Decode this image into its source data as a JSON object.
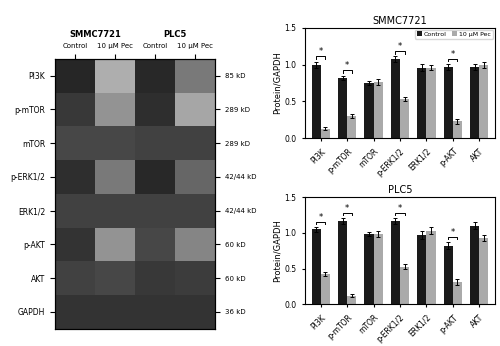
{
  "chart_data": [
    {
      "type": "heatmap",
      "rows": [
        "PI3K",
        "p-mTOR",
        "mTOR",
        "p-ERK1/2",
        "ERK1/2",
        "p-AKT",
        "AKT",
        "GAPDH"
      ],
      "row_labels_right": [
        "85 kD",
        "289 kD",
        "289 kD",
        "42/44 kD",
        "42/44 kD",
        "60 kD",
        "60 kD",
        "36 kD"
      ],
      "columns": [
        "Control",
        "10 μM Pec",
        "Control",
        "10 μM Pec"
      ],
      "column_groups": [
        "SMMC7721",
        "SMMC7721",
        "PLC5",
        "PLC5"
      ],
      "cells": [
        [
          0.15,
          0.68,
          0.16,
          0.48
        ],
        [
          0.22,
          0.58,
          0.18,
          0.65
        ],
        [
          0.28,
          0.28,
          0.26,
          0.26
        ],
        [
          0.18,
          0.48,
          0.16,
          0.4
        ],
        [
          0.26,
          0.26,
          0.26,
          0.26
        ],
        [
          0.2,
          0.58,
          0.28,
          0.52
        ],
        [
          0.26,
          0.28,
          0.22,
          0.24
        ],
        [
          0.2,
          0.2,
          0.2,
          0.2
        ]
      ],
      "color_range": [
        0,
        1
      ]
    },
    {
      "type": "bar",
      "title": "SMMC7721",
      "categories": [
        "PI3K",
        "p-mTOR",
        "mTOR",
        "p-ERK1/2",
        "ERK1/2",
        "p-AKT",
        "AKT"
      ],
      "series": [
        {
          "name": "Control",
          "color": "#1a1a1a",
          "values": [
            1.0,
            0.82,
            0.75,
            1.07,
            0.96,
            0.97,
            0.97
          ],
          "errors": [
            0.04,
            0.03,
            0.03,
            0.04,
            0.05,
            0.04,
            0.04
          ]
        },
        {
          "name": "10 μM Pec",
          "color": "#aaaaaa",
          "values": [
            0.13,
            0.3,
            0.76,
            0.53,
            0.96,
            0.23,
            0.99
          ],
          "errors": [
            0.02,
            0.03,
            0.04,
            0.03,
            0.04,
            0.03,
            0.04
          ]
        }
      ],
      "significance": [
        true,
        true,
        false,
        true,
        false,
        true,
        false
      ],
      "significance_label": "*",
      "y_label": "Protein/GAPDH",
      "ylim": [
        0,
        1.5
      ],
      "yticks": [
        {
          "value": 0,
          "label": "0.0"
        },
        {
          "value": 0.5,
          "label": "0.5"
        },
        {
          "value": 1,
          "label": "1.0"
        },
        {
          "value": 1.5,
          "label": "1.5"
        }
      ],
      "legend": "upper right"
    },
    {
      "type": "bar",
      "title": "PLC5",
      "categories": [
        "PI3K",
        "p-mTOR",
        "mTOR",
        "p-ERK1/2",
        "ERK1/2",
        "p-AKT",
        "AKT"
      ],
      "series": [
        {
          "name": "Control",
          "color": "#1a1a1a",
          "values": [
            1.05,
            1.17,
            0.99,
            1.17,
            0.97,
            0.82,
            1.1
          ],
          "errors": [
            0.04,
            0.04,
            0.03,
            0.04,
            0.06,
            0.05,
            0.05
          ]
        },
        {
          "name": "10 μM Pec",
          "color": "#aaaaaa",
          "values": [
            0.43,
            0.12,
            0.99,
            0.53,
            1.03,
            0.31,
            0.93
          ],
          "errors": [
            0.03,
            0.02,
            0.04,
            0.03,
            0.05,
            0.04,
            0.04
          ]
        }
      ],
      "significance": [
        true,
        true,
        false,
        true,
        false,
        true,
        false
      ],
      "significance_label": "*",
      "y_label": "Protein/GAPDH",
      "ylim": [
        0,
        1.5
      ],
      "yticks": [
        {
          "value": 0,
          "label": "0.0"
        },
        {
          "value": 0.5,
          "label": "0.5"
        },
        {
          "value": 1,
          "label": "1.0"
        },
        {
          "value": 1.5,
          "label": "1.5"
        }
      ]
    }
  ]
}
